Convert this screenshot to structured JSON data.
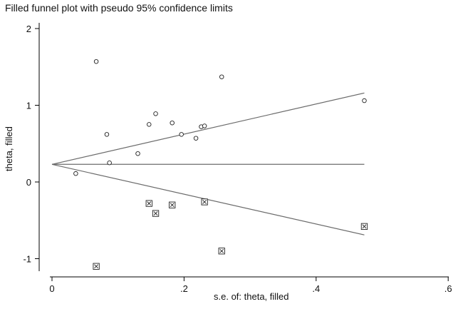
{
  "chart_data": {
    "type": "scatter",
    "title": "Filled funnel plot with pseudo 95% confidence limits",
    "xlabel": "s.e. of: theta, filled",
    "ylabel": "theta, filled",
    "xlim": [
      0,
      0.6
    ],
    "ylim": [
      -1.1,
      2.0
    ],
    "x_ticks": [
      0,
      0.2,
      0.4,
      0.6
    ],
    "x_tick_labels": [
      "0",
      ".2",
      ".4",
      ".6"
    ],
    "y_ticks": [
      -1,
      0,
      1,
      2
    ],
    "y_tick_labels": [
      "-1",
      "0",
      "1",
      "2"
    ],
    "grid": false,
    "legend": "none",
    "pooled_estimate": 0.23,
    "limits": {
      "se_max": 0.473,
      "upper_at_se_max": 1.16,
      "lower_at_se_max": -0.69
    },
    "series": [
      {
        "marker": "hollow-circle",
        "x": [
          0.036,
          0.067,
          0.083,
          0.087,
          0.13,
          0.147,
          0.157,
          0.182,
          0.196,
          0.218,
          0.226,
          0.231,
          0.257,
          0.473
        ],
        "y": [
          0.11,
          1.57,
          0.62,
          0.25,
          0.37,
          0.75,
          0.89,
          0.77,
          0.62,
          0.57,
          0.72,
          0.73,
          1.37,
          1.06
        ]
      },
      {
        "marker": "boxed-x",
        "x": [
          0.067,
          0.147,
          0.157,
          0.182,
          0.231,
          0.257,
          0.473
        ],
        "y": [
          -1.1,
          -0.28,
          -0.41,
          -0.3,
          -0.26,
          -0.9,
          -0.58
        ]
      }
    ]
  }
}
